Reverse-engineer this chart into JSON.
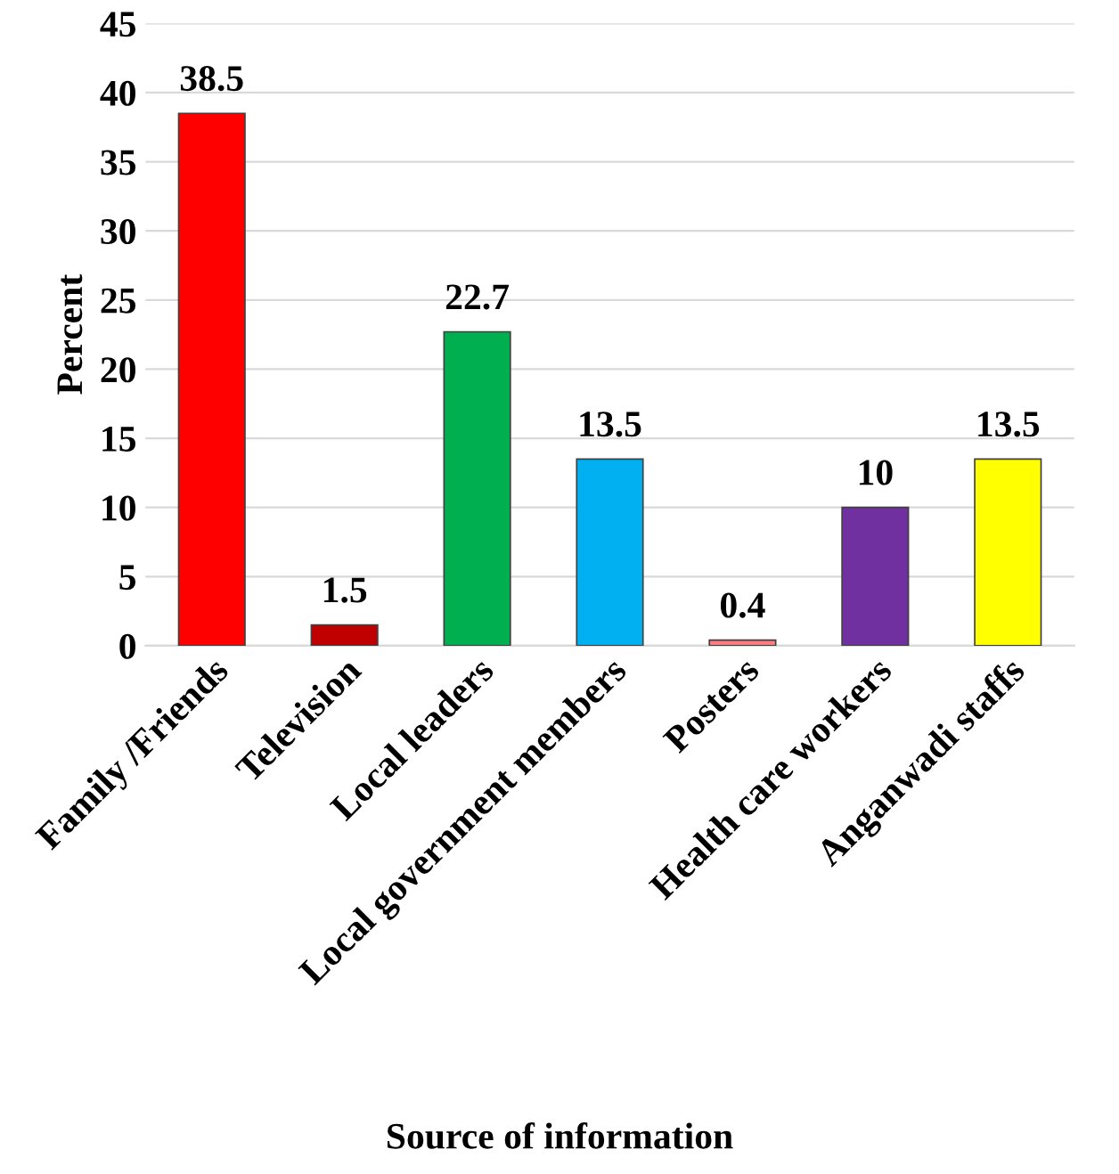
{
  "chart_data": {
    "type": "bar",
    "xlabel": "Source of information",
    "ylabel": "Percent",
    "categories": [
      "Family /Friends",
      "Television",
      "Local leaders",
      "Local government members",
      "Posters",
      "Health care workers",
      "Anganwadi staffs"
    ],
    "values": [
      38.5,
      1.5,
      22.7,
      13.5,
      0.4,
      10,
      13.5
    ],
    "colors": [
      "#ff0000",
      "#c00000",
      "#00b050",
      "#00b0f0",
      "#ff7c80",
      "#7030a0",
      "#ffff00"
    ],
    "ylim": [
      0,
      45
    ],
    "yticks": [
      0,
      5,
      10,
      15,
      20,
      25,
      30,
      35,
      40,
      45
    ],
    "grid": "y",
    "data_labels": true,
    "legend": false
  }
}
